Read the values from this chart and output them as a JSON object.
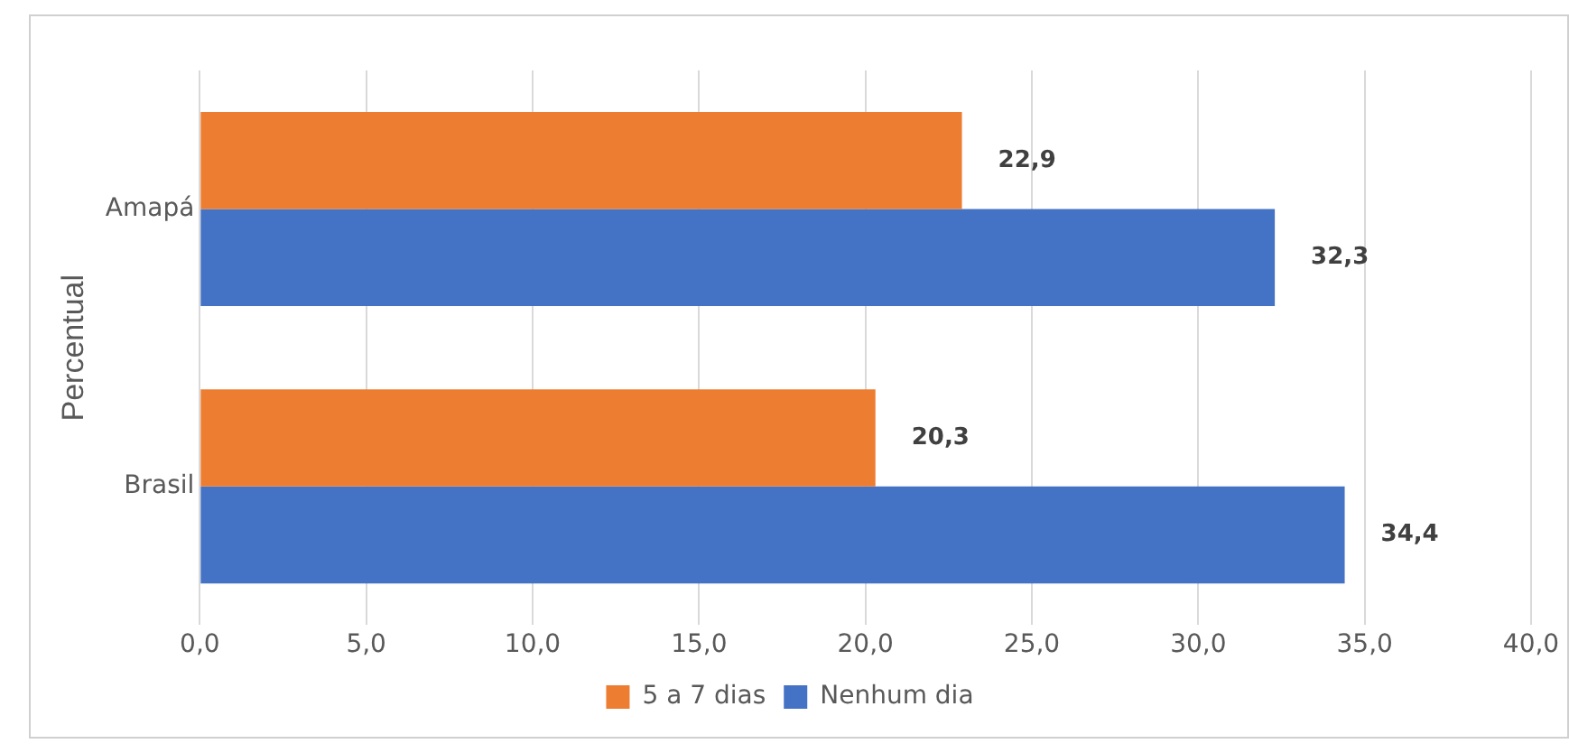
{
  "chart_data": {
    "type": "bar",
    "orientation": "horizontal",
    "ylabel": "Percentual",
    "categories": [
      "Amapá",
      "Brasil"
    ],
    "series": [
      {
        "name": "5 a 7 dias",
        "color": "#ed7d31",
        "values": [
          22.9,
          20.3
        ],
        "value_labels": [
          "22,9",
          "20,3"
        ]
      },
      {
        "name": "Nenhum dia",
        "color": "#4472c4",
        "values": [
          32.3,
          34.4
        ],
        "value_labels": [
          "32,3",
          "34,4"
        ]
      }
    ],
    "xlim": [
      0,
      40
    ],
    "xticks": [
      {
        "value": 0,
        "label": "0,0"
      },
      {
        "value": 5,
        "label": "5,0"
      },
      {
        "value": 10,
        "label": "10,0"
      },
      {
        "value": 15,
        "label": "15,0"
      },
      {
        "value": 20,
        "label": "20,0"
      },
      {
        "value": 25,
        "label": "25,0"
      },
      {
        "value": 30,
        "label": "30,0"
      },
      {
        "value": 35,
        "label": "35,0"
      },
      {
        "value": 40,
        "label": "40,0"
      }
    ],
    "grid": "x",
    "legend": "bottom"
  }
}
